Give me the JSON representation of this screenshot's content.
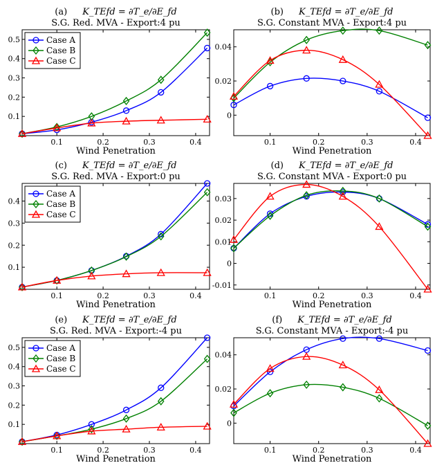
{
  "chart_data": [
    {
      "type": "line",
      "label": "(a)",
      "title_line1": "K_TEfd = ∂T_e/∂E_fd",
      "title_line2": "S.G. Red. MVA - Export:4 pu",
      "xlabel": "Wind Penetration",
      "xlim": [
        0.025,
        0.43
      ],
      "ylim": [
        0,
        0.55
      ],
      "xticks": [
        "0.1",
        "0.2",
        "0.3",
        "0.4"
      ],
      "yticks": [
        "0.1",
        "0.2",
        "0.3",
        "0.4",
        "0.5"
      ],
      "legend": "top-left",
      "x": [
        0.025,
        0.1,
        0.175,
        0.25,
        0.325,
        0.425
      ],
      "series": [
        {
          "name": "Case A",
          "color": "#0000ff",
          "marker": "circle",
          "values": [
            0.01,
            0.03,
            0.07,
            0.13,
            0.225,
            0.455
          ]
        },
        {
          "name": "Case B",
          "color": "#008000",
          "marker": "diamond",
          "values": [
            0.01,
            0.045,
            0.1,
            0.18,
            0.29,
            0.535
          ]
        },
        {
          "name": "Case C",
          "color": "#ff0000",
          "marker": "triangle",
          "values": [
            0.01,
            0.04,
            0.065,
            0.075,
            0.08,
            0.085
          ]
        }
      ]
    },
    {
      "type": "line",
      "label": "(b)",
      "title_line1": "K_TEfd = ∂T_e/∂E_fd",
      "title_line2": "S.G. Constant MVA - Export:4 pu",
      "xlabel": "Wind Penetration",
      "xlim": [
        0.025,
        0.43
      ],
      "ylim": [
        -0.012,
        0.05
      ],
      "xticks": [
        "0.1",
        "0.2",
        "0.3",
        "0.4"
      ],
      "yticks": [
        "0",
        "0.02",
        "0.04"
      ],
      "legend": "none",
      "x": [
        0.025,
        0.1,
        0.175,
        0.25,
        0.325,
        0.425
      ],
      "series": [
        {
          "name": "Case A",
          "color": "#0000ff",
          "marker": "circle",
          "values": [
            0.006,
            0.017,
            0.0215,
            0.02,
            0.014,
            -0.0015
          ]
        },
        {
          "name": "Case B",
          "color": "#008000",
          "marker": "diamond",
          "values": [
            0.01,
            0.031,
            0.044,
            0.0495,
            0.0495,
            0.041
          ]
        },
        {
          "name": "Case C",
          "color": "#ff0000",
          "marker": "triangle",
          "values": [
            0.011,
            0.032,
            0.038,
            0.0325,
            0.018,
            -0.012
          ]
        }
      ]
    },
    {
      "type": "line",
      "label": "(c)",
      "title_line1": "K_TEfd = ∂T_e/∂E_fd",
      "title_line2": "S.G. Red. MVA - Export:0 pu",
      "xlabel": "Wind Penetration",
      "xlim": [
        0.025,
        0.43
      ],
      "ylim": [
        0,
        0.48
      ],
      "xticks": [
        "0.1",
        "0.2",
        "0.3",
        "0.4"
      ],
      "yticks": [
        "0.1",
        "0.2",
        "0.3",
        "0.4"
      ],
      "legend": "top-left",
      "x": [
        0.025,
        0.1,
        0.175,
        0.25,
        0.325,
        0.425
      ],
      "series": [
        {
          "name": "Case A",
          "color": "#0000ff",
          "marker": "circle",
          "values": [
            0.01,
            0.04,
            0.085,
            0.15,
            0.25,
            0.48
          ]
        },
        {
          "name": "Case B",
          "color": "#008000",
          "marker": "diamond",
          "values": [
            0.01,
            0.04,
            0.085,
            0.148,
            0.24,
            0.44
          ]
        },
        {
          "name": "Case C",
          "color": "#ff0000",
          "marker": "triangle",
          "values": [
            0.01,
            0.04,
            0.06,
            0.07,
            0.075,
            0.075
          ]
        }
      ]
    },
    {
      "type": "line",
      "label": "(d)",
      "title_line1": "K_TEfd = ∂T_e/∂E_fd",
      "title_line2": "S.G. Constant MVA - Export:0 pu",
      "xlabel": "Wind Penetration",
      "xlim": [
        0.025,
        0.43
      ],
      "ylim": [
        -0.012,
        0.037
      ],
      "xticks": [
        "0.1",
        "0.2",
        "0.3",
        "0.4"
      ],
      "yticks": [
        "-0.01",
        "0",
        "0.01",
        "0.02",
        "0.03"
      ],
      "legend": "none",
      "x": [
        0.025,
        0.1,
        0.175,
        0.25,
        0.325,
        0.425
      ],
      "series": [
        {
          "name": "Case A",
          "color": "#0000ff",
          "marker": "circle",
          "values": [
            0.007,
            0.023,
            0.031,
            0.033,
            0.03,
            0.018
          ]
        },
        {
          "name": "Case B",
          "color": "#008000",
          "marker": "diamond",
          "values": [
            0.007,
            0.022,
            0.0315,
            0.0335,
            0.03,
            0.017
          ]
        },
        {
          "name": "Case C",
          "color": "#ff0000",
          "marker": "triangle",
          "values": [
            0.011,
            0.031,
            0.0365,
            0.031,
            0.017,
            -0.012
          ]
        }
      ]
    },
    {
      "type": "line",
      "label": "(e)",
      "title_line1": "K_TEfd = ∂T_e/∂E_fd",
      "title_line2": "S.G. Red. MVA - Export:-4 pu",
      "xlabel": "Wind Penetration",
      "xlim": [
        0.025,
        0.43
      ],
      "ylim": [
        0,
        0.55
      ],
      "xticks": [
        "0.1",
        "0.2",
        "0.3",
        "0.4"
      ],
      "yticks": [
        "0.1",
        "0.2",
        "0.3",
        "0.4",
        "0.5"
      ],
      "legend": "top-left",
      "x": [
        0.025,
        0.1,
        0.175,
        0.25,
        0.325,
        0.425
      ],
      "series": [
        {
          "name": "Case A",
          "color": "#0000ff",
          "marker": "circle",
          "values": [
            0.01,
            0.045,
            0.1,
            0.175,
            0.29,
            0.55
          ]
        },
        {
          "name": "Case B",
          "color": "#008000",
          "marker": "diamond",
          "values": [
            0.01,
            0.04,
            0.075,
            0.13,
            0.22,
            0.44
          ]
        },
        {
          "name": "Case C",
          "color": "#ff0000",
          "marker": "triangle",
          "values": [
            0.01,
            0.04,
            0.065,
            0.075,
            0.085,
            0.09
          ]
        }
      ]
    },
    {
      "type": "line",
      "label": "(f)",
      "title_line1": "K_TEfd = ∂T_e/∂E_fd",
      "title_line2": "S.G. Constant MVA - Export:-4 pu",
      "xlabel": "Wind Penetration",
      "xlim": [
        0.025,
        0.43
      ],
      "ylim": [
        -0.012,
        0.05
      ],
      "xticks": [
        "0.1",
        "0.2",
        "0.3",
        "0.4"
      ],
      "yticks": [
        "0",
        "0.02",
        "0.04"
      ],
      "legend": "none",
      "x": [
        0.025,
        0.1,
        0.175,
        0.25,
        0.325,
        0.425
      ],
      "series": [
        {
          "name": "Case A",
          "color": "#0000ff",
          "marker": "circle",
          "values": [
            0.01,
            0.03,
            0.043,
            0.0495,
            0.0495,
            0.0425
          ]
        },
        {
          "name": "Case B",
          "color": "#008000",
          "marker": "diamond",
          "values": [
            0.006,
            0.0175,
            0.0225,
            0.021,
            0.0145,
            -0.0015
          ]
        },
        {
          "name": "Case C",
          "color": "#ff0000",
          "marker": "triangle",
          "values": [
            0.011,
            0.032,
            0.039,
            0.034,
            0.0195,
            -0.012
          ]
        }
      ]
    }
  ]
}
